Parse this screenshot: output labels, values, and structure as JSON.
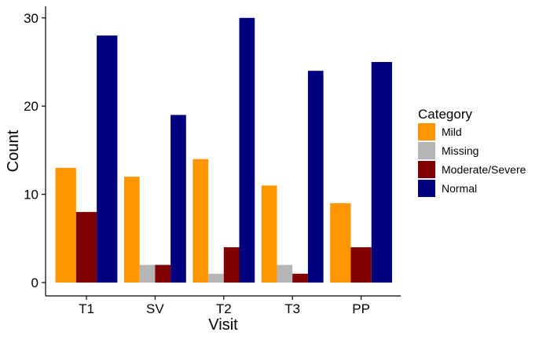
{
  "chart_data": {
    "type": "bar",
    "title": "",
    "xlabel": "Visit",
    "ylabel": "Count",
    "ylim": [
      0,
      31.5
    ],
    "yticks": [
      0,
      10,
      20,
      30
    ],
    "grid": false,
    "categories": [
      "T1",
      "SV",
      "T2",
      "T3",
      "PP"
    ],
    "series": [
      {
        "name": "Mild",
        "color": "#FF9500",
        "values": [
          13,
          12,
          14,
          11,
          9
        ]
      },
      {
        "name": "Missing",
        "color": "#B5B5B5",
        "values": [
          0,
          2,
          1,
          2,
          0
        ]
      },
      {
        "name": "Moderate/Severe",
        "color": "#7F0000",
        "values": [
          8,
          2,
          4,
          1,
          4
        ]
      },
      {
        "name": "Normal",
        "color": "#00007F",
        "values": [
          28,
          19,
          30,
          24,
          25
        ]
      }
    ],
    "legend": {
      "title": "Category",
      "position": "right"
    }
  }
}
